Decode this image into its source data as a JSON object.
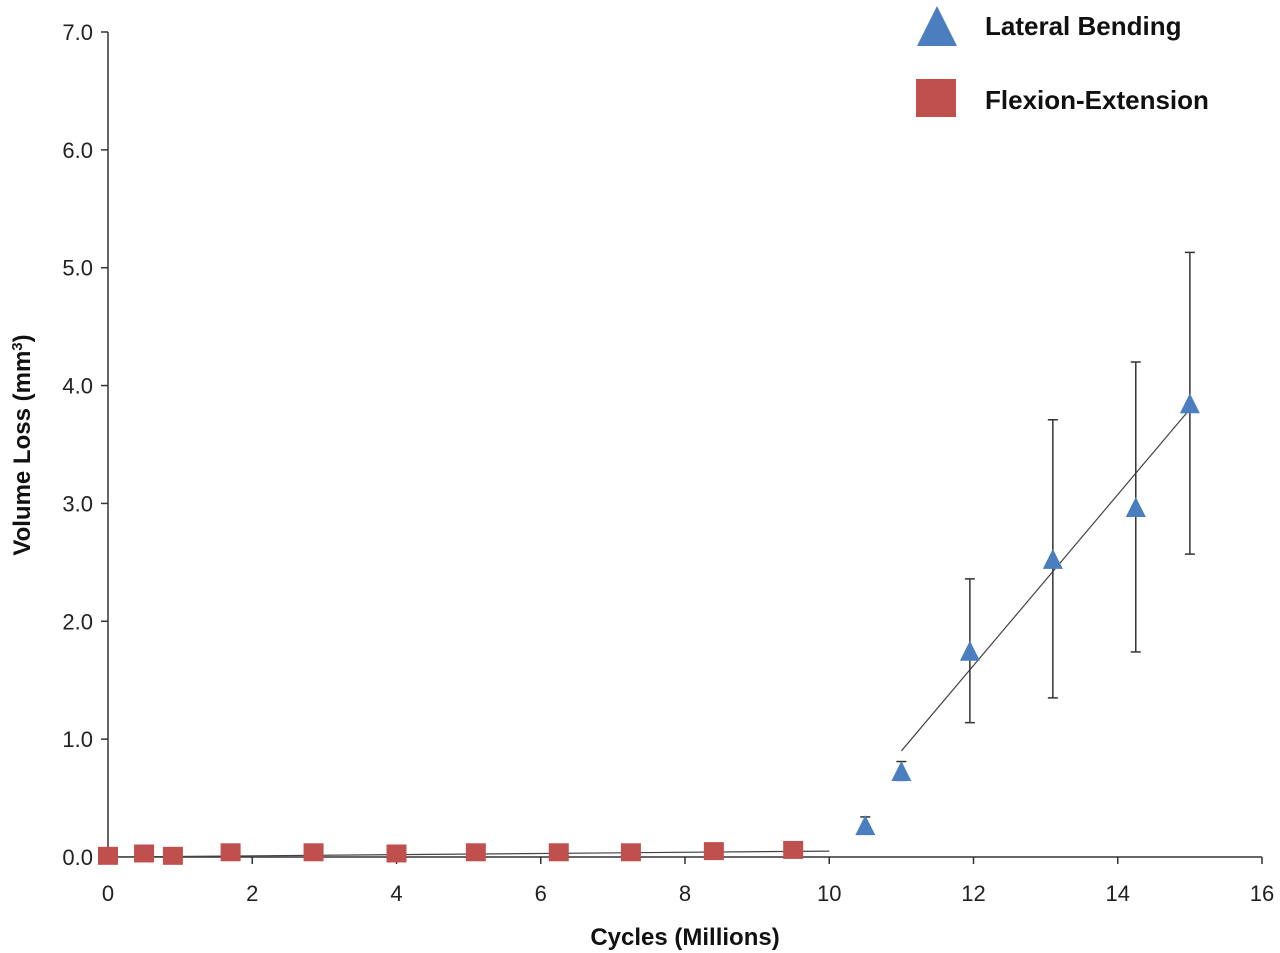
{
  "chart_data": {
    "type": "scatter",
    "title": "",
    "xlabel": "Cycles (Millions)",
    "ylabel_main": "Volume Loss (mm",
    "ylabel_sup": "3",
    "ylabel_end": ")",
    "xlim": [
      0,
      16
    ],
    "ylim": [
      0,
      7
    ],
    "x_ticks": [
      0,
      2,
      4,
      6,
      8,
      10,
      12,
      14,
      16
    ],
    "x_tick_labels": [
      "0",
      "2",
      "4",
      "6",
      "8",
      "10",
      "12",
      "14",
      "16"
    ],
    "y_ticks": [
      0,
      1,
      2,
      3,
      4,
      5,
      6,
      7
    ],
    "y_tick_labels": [
      "0.0",
      "1.0",
      "2.0",
      "3.0",
      "4.0",
      "5.0",
      "6.0",
      "7.0"
    ],
    "grid": false,
    "legend_position": "top-right",
    "series": [
      {
        "name": "Lateral Bending",
        "marker": "triangle",
        "color": "#4a7ebf",
        "points": [
          {
            "x": 10.5,
            "y": 0.27,
            "err": 0.07
          },
          {
            "x": 11.0,
            "y": 0.73,
            "err": 0.08
          },
          {
            "x": 11.95,
            "y": 1.75,
            "err": 0.61
          },
          {
            "x": 13.1,
            "y": 2.53,
            "err": 1.18
          },
          {
            "x": 14.25,
            "y": 2.97,
            "err": 1.23
          },
          {
            "x": 15.0,
            "y": 3.85,
            "err": 1.28
          }
        ],
        "trendline": {
          "x": [
            11.0,
            15.0
          ],
          "y": [
            0.9,
            3.8
          ]
        }
      },
      {
        "name": "Flexion-Extension",
        "marker": "square",
        "color": "#c0504d",
        "points": [
          {
            "x": 0.0,
            "y": 0.01
          },
          {
            "x": 0.5,
            "y": 0.03
          },
          {
            "x": 0.9,
            "y": 0.01
          },
          {
            "x": 1.7,
            "y": 0.04
          },
          {
            "x": 2.85,
            "y": 0.04
          },
          {
            "x": 4.0,
            "y": 0.03
          },
          {
            "x": 5.1,
            "y": 0.04
          },
          {
            "x": 6.25,
            "y": 0.04
          },
          {
            "x": 7.25,
            "y": 0.04
          },
          {
            "x": 8.4,
            "y": 0.05
          },
          {
            "x": 9.5,
            "y": 0.06
          }
        ],
        "trendline": {
          "x": [
            0.0,
            10.0
          ],
          "y": [
            0.0,
            0.05
          ]
        }
      }
    ]
  }
}
